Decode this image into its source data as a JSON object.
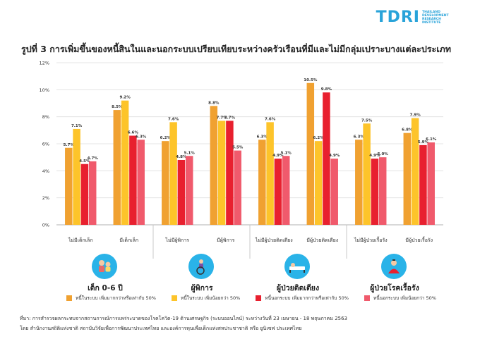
{
  "logo": {
    "mark": "TDRI",
    "sub": "THAILAND DEVELOPMENT RESEARCH INSTITUTE"
  },
  "title": {
    "prefix": "รูปที่ 3",
    "text": " การเพิ่มขึ้นของหนี้สินในและนอกระบบเปรียบเทียบระหว่างครัวเรือนที่มีและไม่มีกลุ่มเปราะบางแต่ละประเภท"
  },
  "chart_data": {
    "type": "bar",
    "ylim": [
      0,
      12
    ],
    "yticks": [
      "0%",
      "2%",
      "4%",
      "6%",
      "8%",
      "10%",
      "12%"
    ],
    "categories": [
      "ไม่มีเด็กเล็ก",
      "มีเด็กเล็ก",
      "ไม่มีผู้พิการ",
      "มีผู้พิการ",
      "ไม่มีผู้ป่วยติดเตียง",
      "มีผู้ป่วยติดเตียง",
      "ไม่มีผู้ป่วยเรื้อรัง",
      "มีผู้ป่วยเรื้อรัง"
    ],
    "series": [
      {
        "name": "หนี้ในระบบ เพิ่มมากกว่าหรือเท่ากับ 50%",
        "color": "#f0a131",
        "values": [
          5.7,
          8.5,
          6.2,
          8.8,
          6.3,
          10.5,
          6.3,
          6.8
        ]
      },
      {
        "name": "หนี้ในระบบ เพิ่มน้อยกว่า 50%",
        "color": "#fdc42a",
        "values": [
          7.1,
          9.2,
          7.6,
          7.7,
          7.6,
          6.2,
          7.5,
          7.9
        ]
      },
      {
        "name": "หนี้นอกระบบ เพิ่มมากกว่าหรือเท่ากับ 50%",
        "color": "#e8202f",
        "values": [
          4.5,
          6.6,
          4.8,
          7.7,
          4.9,
          9.8,
          4.9,
          5.9
        ]
      },
      {
        "name": "หนี้นอกระบบ เพิ่มน้อยกว่า 50%",
        "color": "#f05a6c",
        "values": [
          4.7,
          6.3,
          5.1,
          5.5,
          5.1,
          4.9,
          5.0,
          6.1
        ]
      }
    ],
    "data_labels": [
      [
        "5.7%",
        "8.5%",
        "6.2%",
        "8.8%",
        "6.3%",
        "10.5%",
        "6.3%",
        "6.8%"
      ],
      [
        "7.1%",
        "9.2%",
        "7.6%",
        "7.7%",
        "7.6%",
        "6.2%",
        "7.5%",
        "7.9%"
      ],
      [
        "4.5%",
        "6.6%",
        "4.8%",
        "7.7%",
        "4.9%",
        "9.8%",
        "4.9%",
        "5.9%"
      ],
      [
        "4.7%",
        "6.3%",
        "5.1%",
        "5.5%",
        "5.1%",
        "4.9%",
        "5.0%",
        "6.1%"
      ]
    ],
    "groups": [
      "เด็ก 0-6 ปี",
      "ผู้พิการ",
      "ผู้ป่วยติดเตียง",
      "ผู้ป่วยโรคเรื้อรัง"
    ],
    "grid": true
  },
  "footnotes": [
    "ที่มา: การสำรวจผลกระทบจากสถานการณ์การแพร่ระบาดของโรคโควิด-19 ด้านเศรษฐกิจ (ระบบออนไลน์) ระหว่างวันที่ 23 เมษายน - 18 พฤษภาคม 2563",
    "โดย สำนักงานสถิติแห่งชาติ สถาบันวิจัยเพื่อการพัฒนาประเทศไทย และองค์การทุนเพื่อเด็กแห่งสหประชาชาติ หรือ ยูนิเซฟ ประเทศไทย"
  ],
  "icons": [
    "child-icon",
    "wheelchair-icon",
    "bed-icon",
    "patient-icon"
  ],
  "colors": {
    "logo": "#29a3d9",
    "icon_bg": "#2ab3e8"
  }
}
